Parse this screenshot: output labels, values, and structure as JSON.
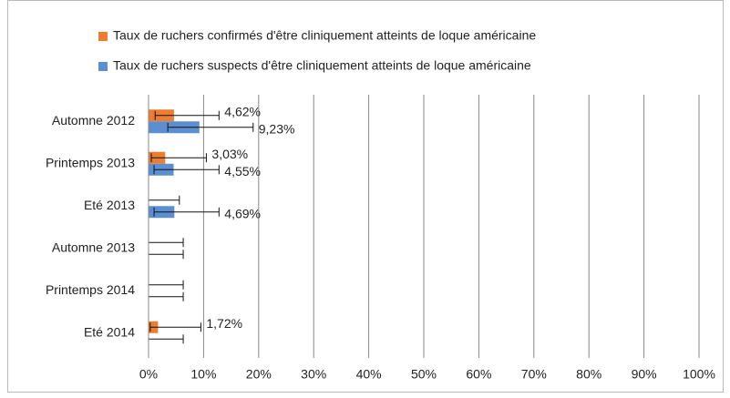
{
  "chart_data": {
    "type": "bar",
    "orientation": "horizontal",
    "categories": [
      "Automne 2012",
      "Printemps 2013",
      "Eté 2013",
      "Automne 2013",
      "Printemps 2014",
      "Eté 2014"
    ],
    "series": [
      {
        "name": "Taux de ruchers confirmés d'être cliniquement atteints de loque américaine",
        "color": "#ed7d31",
        "values": [
          4.62,
          3.03,
          0,
          0,
          0,
          1.72
        ],
        "value_labels": [
          "4,62%",
          "3,03%",
          null,
          null,
          null,
          "1,72%"
        ],
        "error_low": [
          1.2,
          0.5,
          0,
          0,
          0,
          0.3
        ],
        "error_high": [
          12.8,
          10.5,
          5.6,
          6.3,
          6.3,
          9.5
        ]
      },
      {
        "name": "Taux de ruchers suspects d'être cliniquement atteints de loque américaine",
        "color": "#5b8fd0",
        "values": [
          9.23,
          4.55,
          4.69,
          0,
          0,
          0
        ],
        "value_labels": [
          "9,23%",
          "4,55%",
          "4,69%",
          null,
          null,
          null
        ],
        "error_low": [
          3.5,
          1,
          1,
          0,
          0,
          0
        ],
        "error_high": [
          19,
          12.8,
          12.8,
          6.3,
          6.3,
          6.3
        ]
      }
    ],
    "xlim": [
      0,
      100
    ],
    "xticks": [
      {
        "value": 0,
        "label": "0%"
      },
      {
        "value": 10,
        "label": "10%"
      },
      {
        "value": 20,
        "label": "20%"
      },
      {
        "value": 30,
        "label": "30%"
      },
      {
        "value": 40,
        "label": "40%"
      },
      {
        "value": 50,
        "label": "50%"
      },
      {
        "value": 60,
        "label": "60%"
      },
      {
        "value": 70,
        "label": "70%"
      },
      {
        "value": 80,
        "label": "80%"
      },
      {
        "value": 90,
        "label": "90%"
      },
      {
        "value": 100,
        "label": "100%"
      }
    ],
    "grid": true
  }
}
